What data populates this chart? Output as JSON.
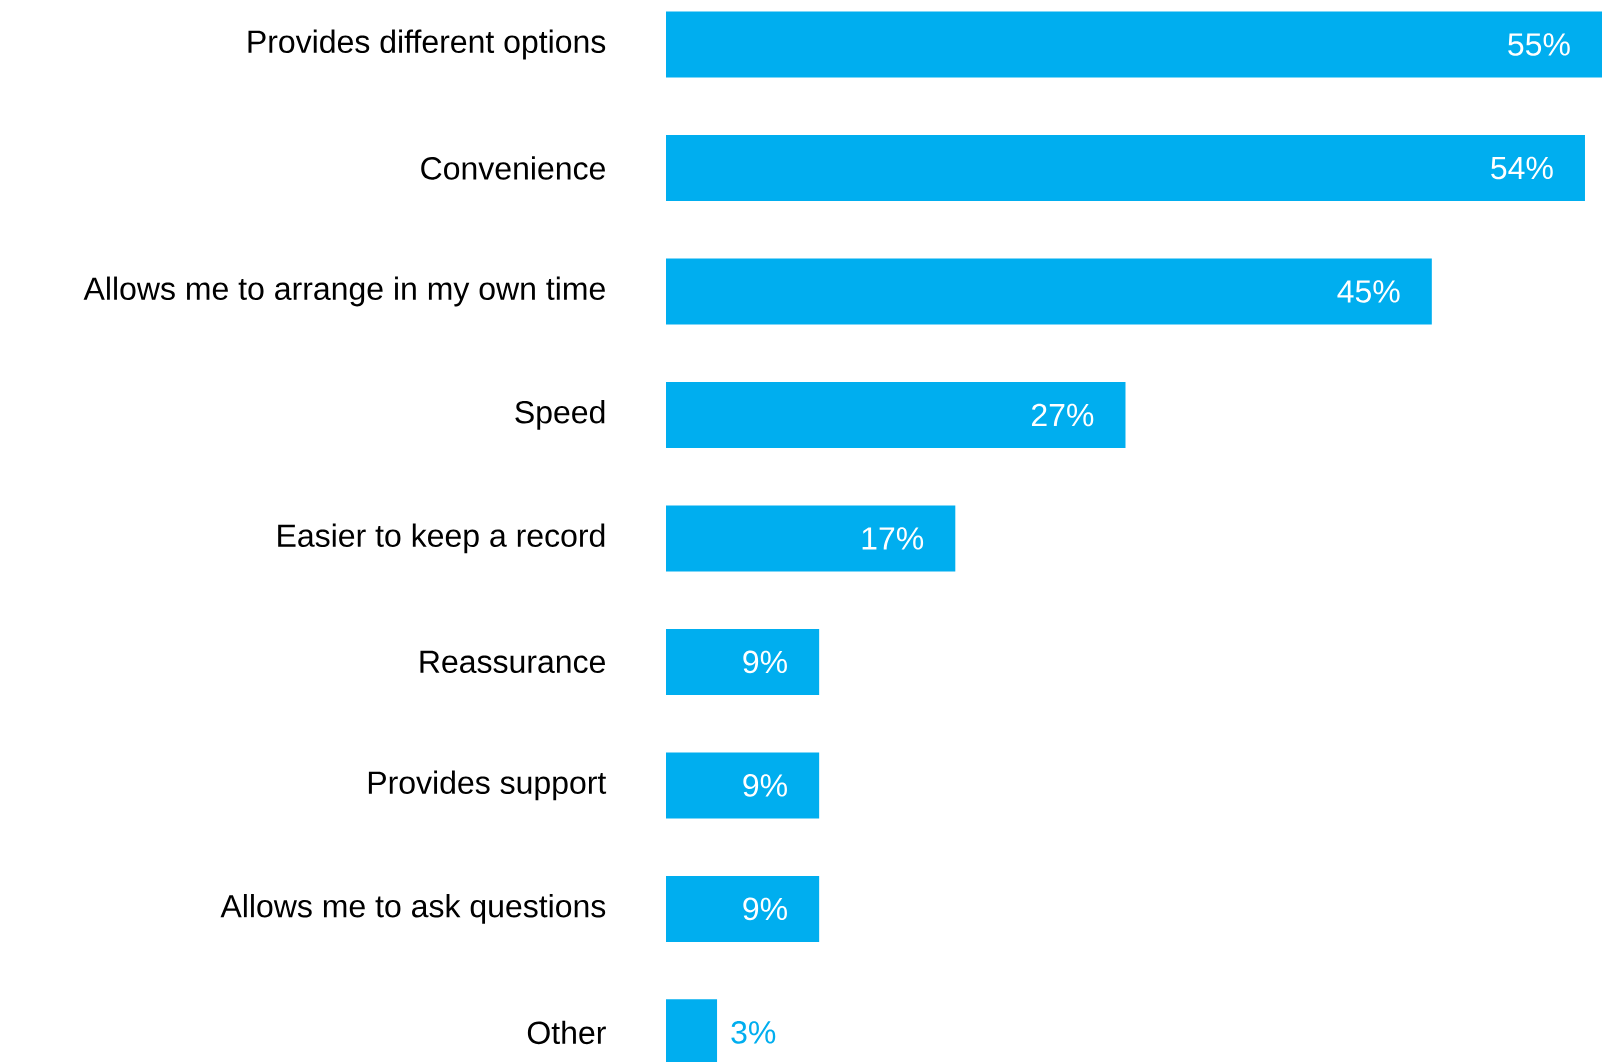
{
  "chart_data": {
    "type": "bar",
    "orientation": "horizontal",
    "categories": [
      "Provides different options",
      "Convenience",
      "Allows me to arrange in my own time",
      "Speed",
      "Easier to keep a record",
      "Reassurance",
      "Provides support",
      "Allows me to ask questions",
      "Other"
    ],
    "values": [
      55,
      54,
      45,
      27,
      17,
      9,
      9,
      9,
      3
    ],
    "value_labels": [
      "55%",
      "54%",
      "45%",
      "27%",
      "17%",
      "9%",
      "9%",
      "9%",
      "3%"
    ],
    "color": "#00aeef"
  }
}
